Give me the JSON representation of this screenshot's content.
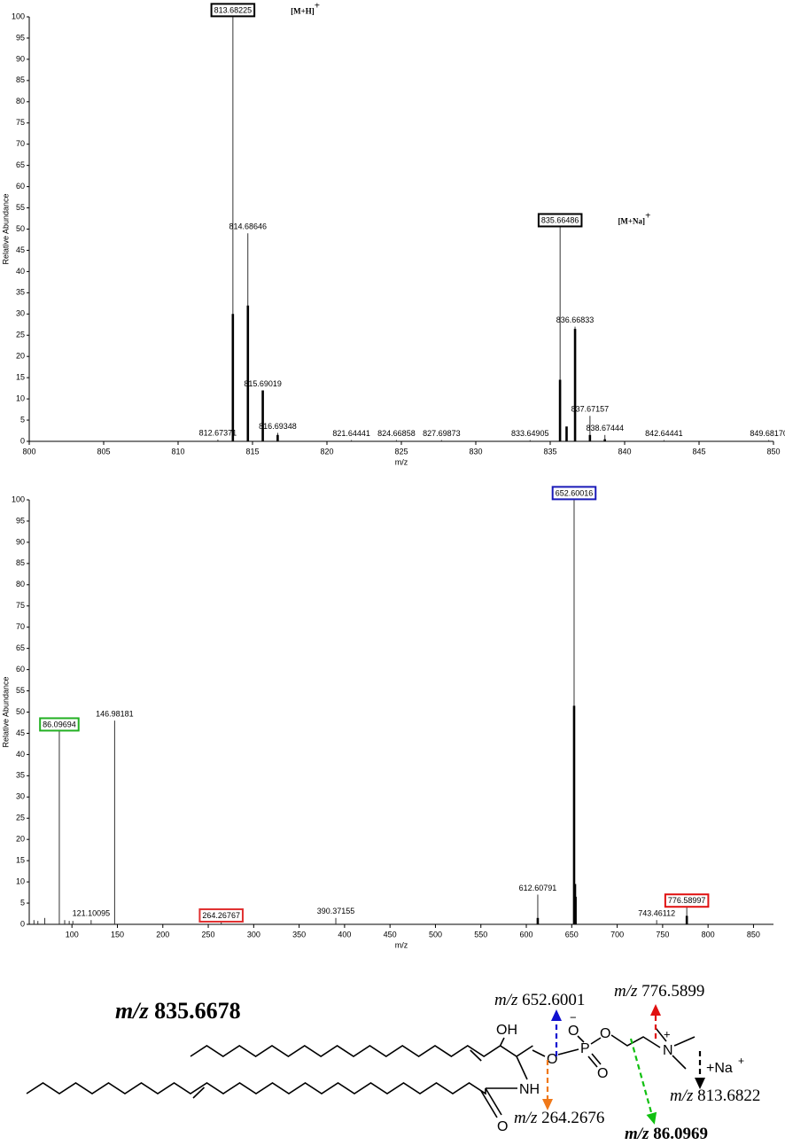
{
  "chart_data": [
    {
      "type": "stem",
      "x_label": "m/z",
      "y_label": "Relative Abundance",
      "xlim": [
        800,
        850
      ],
      "xticks": [
        800,
        805,
        810,
        815,
        820,
        825,
        830,
        835,
        840,
        845,
        850
      ],
      "ylim": [
        0,
        100
      ],
      "yticks": [
        0,
        5,
        10,
        15,
        20,
        25,
        30,
        35,
        40,
        45,
        50,
        55,
        60,
        65,
        70,
        75,
        80,
        85,
        90,
        95,
        100
      ],
      "series": [
        {
          "color": "#333333",
          "x": [
            812.67371,
            813.68225,
            814.68646,
            815.69019,
            816.69348,
            821.64441,
            824.66858,
            827.69873,
            833.64905,
            835.66486,
            836.66833,
            837.67157,
            838.67444,
            842.64441,
            849.6817
          ],
          "values": [
            0.4,
            100,
            49,
            12,
            2,
            0.3,
            0.3,
            0.3,
            0.3,
            50.5,
            27,
            6,
            1.5,
            0.3,
            0.3
          ],
          "x_labels": [
            "812.67371",
            "813.68225",
            "814.68646",
            "815.69019",
            "816.69348",
            "821.64441",
            "824.66858",
            "827.69873",
            "833.64905",
            "835.66486",
            "836.66833",
            "837.67157",
            "838.67444",
            "842.64441",
            "849.68170"
          ],
          "label_boxes": [
            null,
            "#000000",
            null,
            null,
            null,
            null,
            null,
            null,
            null,
            "#000000",
            null,
            null,
            null,
            null,
            null
          ]
        },
        {
          "color": "#000000",
          "x": [
            813.68,
            814.69,
            815.69,
            816.69,
            835.66,
            836.1,
            836.67,
            837.67,
            838.67
          ],
          "values": [
            30,
            32,
            12,
            1.5,
            14.5,
            3.5,
            26.5,
            1.5,
            0.5
          ]
        }
      ],
      "annotations": [
        {
          "text": "[M+H]",
          "superscript": "+"
        },
        {
          "text": "[M+Na]",
          "superscript": "+"
        }
      ]
    },
    {
      "type": "stem",
      "x_label": "m/z",
      "y_label": "Relative Abundance",
      "xlim": [
        53,
        872
      ],
      "xticks": [
        100,
        150,
        200,
        250,
        300,
        350,
        400,
        450,
        500,
        550,
        600,
        650,
        700,
        750,
        800,
        850
      ],
      "ylim": [
        0,
        100
      ],
      "yticks": [
        0,
        5,
        10,
        15,
        20,
        25,
        30,
        35,
        40,
        45,
        50,
        55,
        60,
        65,
        70,
        75,
        80,
        85,
        90,
        95,
        100
      ],
      "series": [
        {
          "color": "#333333",
          "x": [
            58.2,
            62.5,
            70.1,
            86.09694,
            92,
            97,
            101,
            121.10095,
            146.98181,
            264.26767,
            390.37155,
            612.60791,
            652.60016,
            743.46112,
            776.58997
          ],
          "values": [
            1,
            0.8,
            1.5,
            45.5,
            1,
            0.8,
            0.8,
            1,
            48,
            0.5,
            1.5,
            7,
            100,
            1,
            4
          ],
          "x_labels": [
            null,
            null,
            null,
            "86.09694",
            null,
            null,
            null,
            "121.10095",
            "146.98181",
            "264.26767",
            "390.37155",
            "612.60791",
            "652.60016",
            "743.46112",
            "776.58997"
          ],
          "label_boxes": [
            null,
            null,
            null,
            "#22b022",
            null,
            null,
            null,
            null,
            null,
            "#e03030",
            null,
            null,
            "#1a1ab8",
            null,
            "#e01010"
          ]
        },
        {
          "color": "#000000",
          "x": [
            612.6,
            652.6,
            653.6,
            654.2,
            776.6
          ],
          "values": [
            1.5,
            51.5,
            9.5,
            6.5,
            2
          ]
        }
      ]
    }
  ],
  "structure": {
    "precursor": {
      "prefix": "m/z",
      "mass": "835.6678"
    },
    "fragments": [
      {
        "prefix": "m/z",
        "mass": "652.6001",
        "color": "#1010d0"
      },
      {
        "prefix": "m/z",
        "mass": "776.5899",
        "color": "#e01010"
      },
      {
        "prefix": "m/z",
        "mass": "813.6822",
        "color": "#000000"
      },
      {
        "prefix": "m/z",
        "mass": "264.2676",
        "color": "#f07818"
      },
      {
        "prefix": "m/z",
        "mass": "86.0969",
        "color": "#10c010"
      }
    ],
    "atoms": [
      "OH",
      "O",
      "O",
      "−",
      "P",
      "O",
      "O",
      "N",
      "+",
      "NH",
      "O",
      "+Na",
      "+"
    ]
  }
}
